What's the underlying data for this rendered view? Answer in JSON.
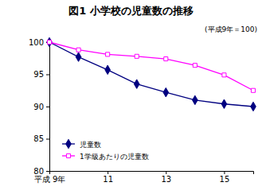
{
  "chart_data": {
    "type": "line",
    "title": "図1 小学校の児童数の推移",
    "subtitle": "(平成9年＝100)",
    "x": [
      9,
      10,
      11,
      12,
      13,
      14,
      15,
      16
    ],
    "xlim": [
      9,
      16
    ],
    "xticks": [
      {
        "value": 9,
        "label": "平成 9年"
      },
      11,
      13,
      15
    ],
    "ylim": [
      80,
      100
    ],
    "yticks": [
      80,
      85,
      90,
      95,
      100
    ],
    "grid": false,
    "legend": "lower left",
    "series": [
      {
        "name": "児童数",
        "color": "#000080",
        "marker": "diamond",
        "line_style": "solid",
        "values": [
          100,
          97.7,
          95.7,
          93.5,
          92.2,
          91.0,
          90.4,
          90.0
        ]
      },
      {
        "name": "1学級あたりの児童数",
        "color": "#ff00ff",
        "marker": "square",
        "line_style": "solid",
        "values": [
          100,
          98.8,
          98.1,
          97.8,
          97.4,
          96.4,
          94.9,
          92.5
        ]
      }
    ]
  }
}
